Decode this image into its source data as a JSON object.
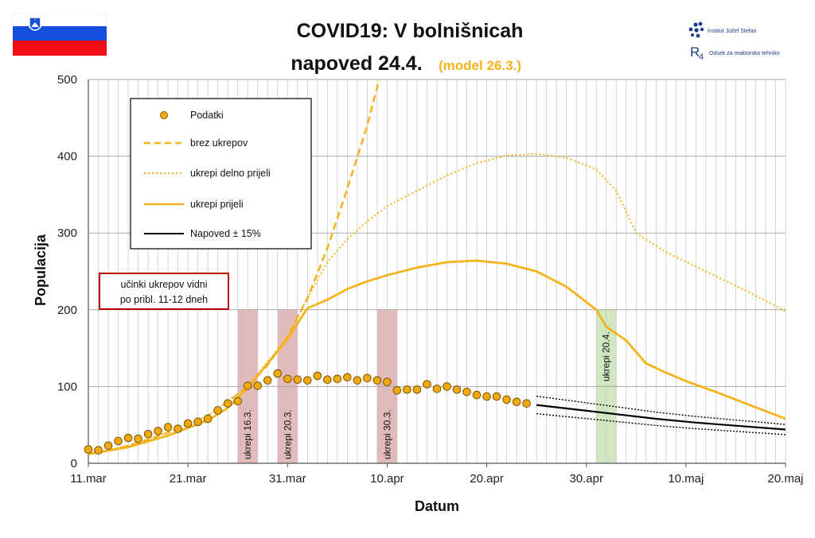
{
  "header": {
    "title_line1": "COVID19: V bolnišnicah",
    "title_line2": "napoved 24.4.",
    "title_model": "(model 26.3.)",
    "logo_ijs": "Institut Jožef Stefan",
    "logo_r4": "Odsek za reaktorsko tehniko",
    "flag_country": "Slovenia"
  },
  "colors": {
    "accent": "#F5B21B",
    "data_point": "#F1A911",
    "forecast": "#000000",
    "title_model": "#F5B21B",
    "measure_band": "#D7A3A1",
    "forecast_band": "#C8E3B5",
    "note_border": "#C00000"
  },
  "note": {
    "line1": "učinki ukrepov vidni",
    "line2": "po pribl. 11-12 dneh"
  },
  "chart_data": {
    "type": "line",
    "x_unit": "date (2020)",
    "xlabel": "Datum",
    "ylabel": "Populacija",
    "xlim": [
      "2020-03-11",
      "2020-05-20"
    ],
    "ylim": [
      0,
      500
    ],
    "y_ticks": [
      0,
      100,
      200,
      300,
      400,
      500
    ],
    "x_ticks": [
      {
        "date": "2020-03-11",
        "label": "11.mar"
      },
      {
        "date": "2020-03-21",
        "label": "21.mar"
      },
      {
        "date": "2020-03-31",
        "label": "31.mar"
      },
      {
        "date": "2020-04-10",
        "label": "10.apr"
      },
      {
        "date": "2020-04-20",
        "label": "20.apr"
      },
      {
        "date": "2020-04-30",
        "label": "30.apr"
      },
      {
        "date": "2020-05-10",
        "label": "10.maj"
      },
      {
        "date": "2020-05-20",
        "label": "20.maj"
      }
    ],
    "grid": "vertical daily lines, horizontal every 100",
    "legend_position": "top-left",
    "data_points": {
      "name": "Podatki",
      "points": [
        [
          "2020-03-11",
          18
        ],
        [
          "2020-03-12",
          17
        ],
        [
          "2020-03-13",
          23
        ],
        [
          "2020-03-14",
          29
        ],
        [
          "2020-03-15",
          33
        ],
        [
          "2020-03-16",
          32
        ],
        [
          "2020-03-17",
          38
        ],
        [
          "2020-03-18",
          42
        ],
        [
          "2020-03-19",
          47
        ],
        [
          "2020-03-20",
          45
        ],
        [
          "2020-03-21",
          52
        ],
        [
          "2020-03-22",
          54
        ],
        [
          "2020-03-23",
          58
        ],
        [
          "2020-03-24",
          69
        ],
        [
          "2020-03-25",
          78
        ],
        [
          "2020-03-26",
          81
        ],
        [
          "2020-03-27",
          101
        ],
        [
          "2020-03-28",
          101
        ],
        [
          "2020-03-29",
          108
        ],
        [
          "2020-03-30",
          117
        ],
        [
          "2020-03-31",
          110
        ],
        [
          "2020-04-01",
          109
        ],
        [
          "2020-04-02",
          108
        ],
        [
          "2020-04-03",
          114
        ],
        [
          "2020-04-04",
          109
        ],
        [
          "2020-04-05",
          110
        ],
        [
          "2020-04-06",
          112
        ],
        [
          "2020-04-07",
          108
        ],
        [
          "2020-04-08",
          111
        ],
        [
          "2020-04-09",
          108
        ],
        [
          "2020-04-10",
          106
        ],
        [
          "2020-04-11",
          95
        ],
        [
          "2020-04-12",
          96
        ],
        [
          "2020-04-13",
          96
        ],
        [
          "2020-04-14",
          103
        ],
        [
          "2020-04-15",
          97
        ],
        [
          "2020-04-16",
          100
        ],
        [
          "2020-04-17",
          96
        ],
        [
          "2020-04-18",
          93
        ],
        [
          "2020-04-19",
          89
        ],
        [
          "2020-04-20",
          87
        ],
        [
          "2020-04-21",
          87
        ],
        [
          "2020-04-22",
          83
        ],
        [
          "2020-04-23",
          80
        ],
        [
          "2020-04-24",
          78
        ]
      ]
    },
    "series": [
      {
        "name": "brez ukrepov",
        "style": "dashed",
        "points": [
          [
            "2020-03-11",
            12
          ],
          [
            "2020-03-13",
            16
          ],
          [
            "2020-03-15",
            23
          ],
          [
            "2020-03-17",
            31
          ],
          [
            "2020-03-19",
            40
          ],
          [
            "2020-03-21",
            50
          ],
          [
            "2020-03-23",
            62
          ],
          [
            "2020-03-25",
            80
          ],
          [
            "2020-03-27",
            100
          ],
          [
            "2020-03-29",
            128
          ],
          [
            "2020-03-31",
            165
          ],
          [
            "2020-04-02",
            215
          ],
          [
            "2020-04-04",
            280
          ],
          [
            "2020-04-06",
            358
          ],
          [
            "2020-04-08",
            440
          ],
          [
            "2020-04-09",
            490
          ],
          [
            "2020-04-09.2",
            500
          ]
        ]
      },
      {
        "name": "ukrepi delno prijeli",
        "style": "dotted",
        "points": [
          [
            "2020-03-11",
            12
          ],
          [
            "2020-03-15",
            23
          ],
          [
            "2020-03-19",
            40
          ],
          [
            "2020-03-23",
            62
          ],
          [
            "2020-03-27",
            100
          ],
          [
            "2020-03-31",
            165
          ],
          [
            "2020-04-02",
            215
          ],
          [
            "2020-04-04",
            262
          ],
          [
            "2020-04-06",
            292
          ],
          [
            "2020-04-08",
            315
          ],
          [
            "2020-04-10",
            335
          ],
          [
            "2020-04-13",
            355
          ],
          [
            "2020-04-16",
            375
          ],
          [
            "2020-04-19",
            391
          ],
          [
            "2020-04-22",
            401
          ],
          [
            "2020-04-25",
            403
          ],
          [
            "2020-04-28",
            398
          ],
          [
            "2020-05-01",
            383
          ],
          [
            "2020-05-03",
            355
          ],
          [
            "2020-05-05",
            300
          ],
          [
            "2020-05-08",
            275
          ],
          [
            "2020-05-12",
            250
          ],
          [
            "2020-05-16",
            225
          ],
          [
            "2020-05-20",
            198
          ]
        ]
      },
      {
        "name": "ukrepi prijeli",
        "style": "solid",
        "points": [
          [
            "2020-03-11",
            12
          ],
          [
            "2020-03-15",
            21
          ],
          [
            "2020-03-19",
            36
          ],
          [
            "2020-03-23",
            56
          ],
          [
            "2020-03-25",
            72
          ],
          [
            "2020-03-27",
            98
          ],
          [
            "2020-03-29",
            130
          ],
          [
            "2020-03-31",
            162
          ],
          [
            "2020-04-02",
            202
          ],
          [
            "2020-04-04",
            213
          ],
          [
            "2020-04-06",
            227
          ],
          [
            "2020-04-08",
            237
          ],
          [
            "2020-04-10",
            245
          ],
          [
            "2020-04-13",
            255
          ],
          [
            "2020-04-16",
            262
          ],
          [
            "2020-04-19",
            264
          ],
          [
            "2020-04-22",
            260
          ],
          [
            "2020-04-25",
            250
          ],
          [
            "2020-04-28",
            230
          ],
          [
            "2020-05-01",
            200
          ],
          [
            "2020-05-02",
            178
          ],
          [
            "2020-05-04",
            160
          ],
          [
            "2020-05-06",
            130
          ],
          [
            "2020-05-08",
            118
          ],
          [
            "2020-05-10",
            107
          ],
          [
            "2020-05-13",
            93
          ],
          [
            "2020-05-16",
            78
          ],
          [
            "2020-05-20",
            58
          ]
        ]
      },
      {
        "name": "Napoved ± 15%",
        "style": "solid",
        "points": [
          [
            "2020-04-25",
            76
          ],
          [
            "2020-04-29",
            70
          ],
          [
            "2020-05-03",
            64
          ],
          [
            "2020-05-07",
            58
          ],
          [
            "2020-05-11",
            53
          ],
          [
            "2020-05-15",
            49
          ],
          [
            "2020-05-20",
            44
          ]
        ],
        "band_pct": 15
      }
    ],
    "measure_bands": [
      {
        "label": "ukrepi 16.3.",
        "start": "2020-03-26",
        "end": "2020-03-28"
      },
      {
        "label": "ukrepi 20.3.",
        "start": "2020-03-30",
        "end": "2020-04-01"
      },
      {
        "label": "ukrepi 30.3.",
        "start": "2020-04-09",
        "end": "2020-04-11"
      }
    ],
    "forecast_band": {
      "label": "ukrepi 20.4.",
      "start": "2020-05-01",
      "end": "2020-05-03"
    }
  }
}
